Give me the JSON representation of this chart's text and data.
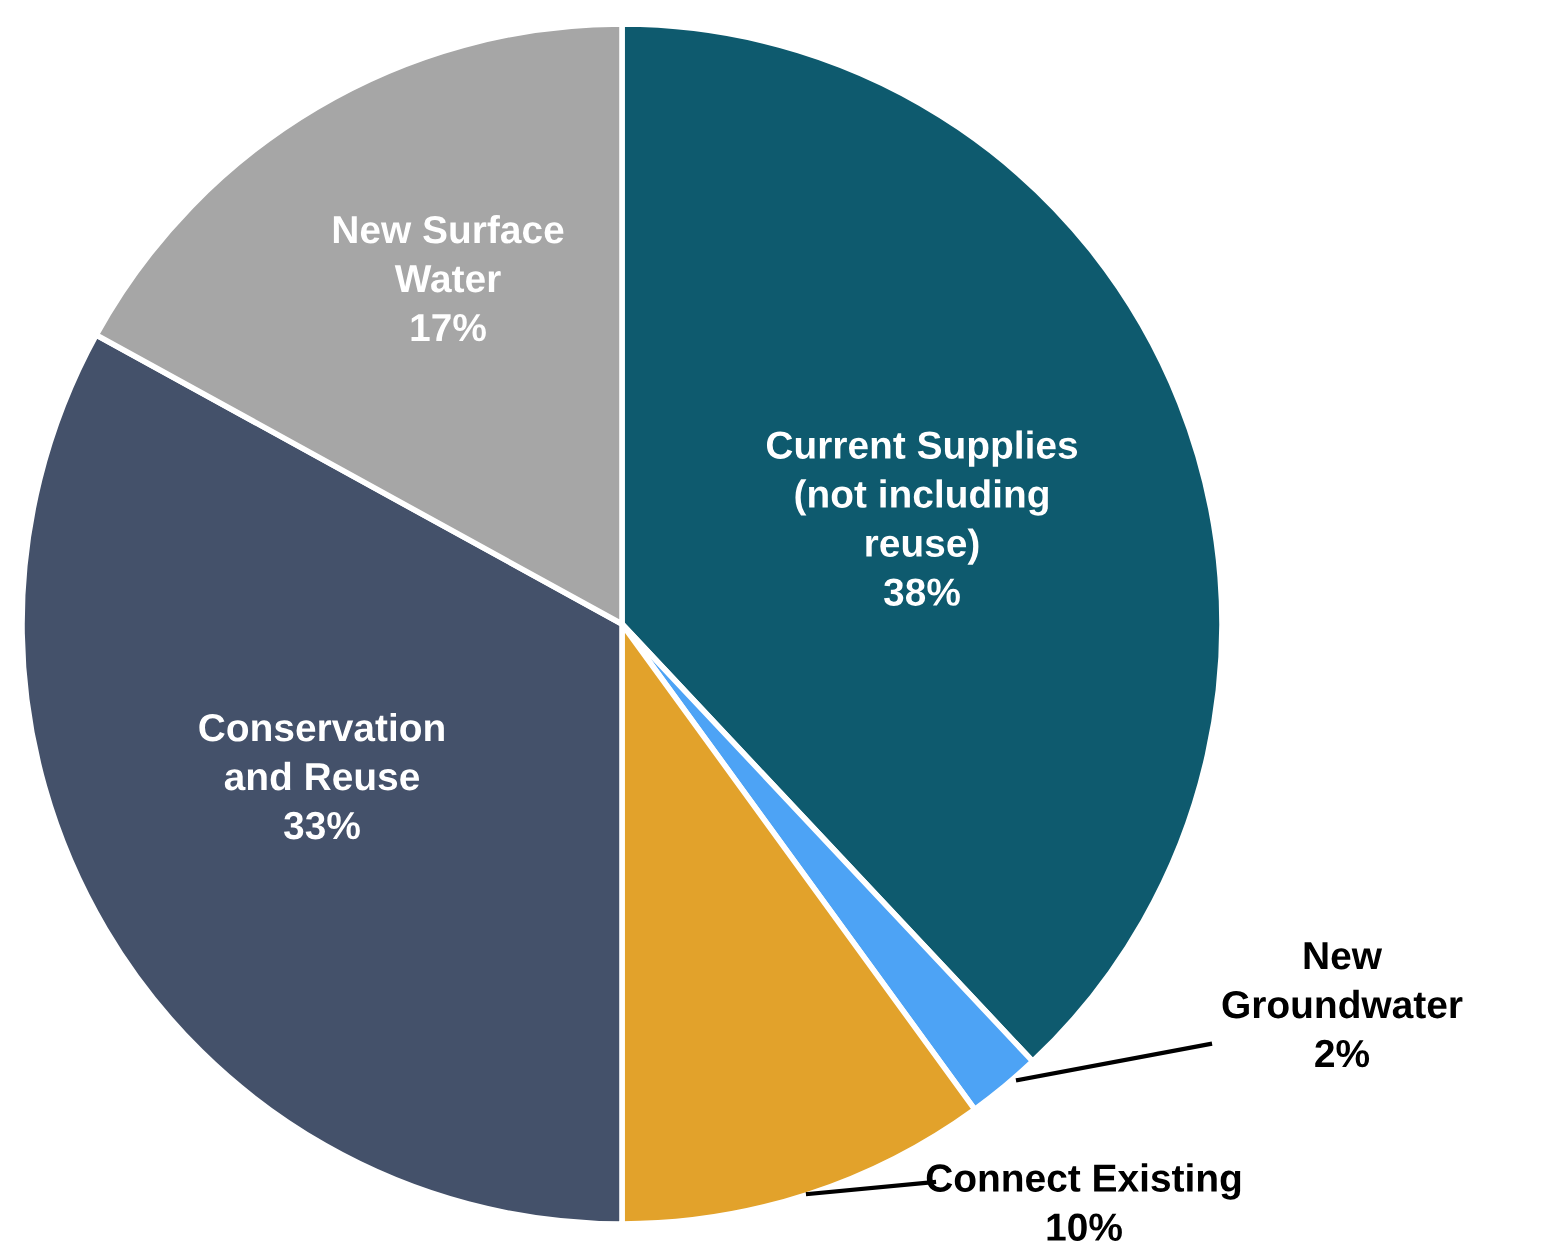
{
  "chart_data": {
    "type": "pie",
    "categories": [
      "Current Supplies\n(not including\nreuse)",
      "New\nGroundwater",
      "Connect Existing",
      "Conservation\nand Reuse",
      "New Surface\nWater"
    ],
    "values": [
      38,
      2,
      10,
      33,
      17
    ],
    "colors": [
      "#0e5a6e",
      "#4da3f5",
      "#e2a22b",
      "#44516a",
      "#a6a6a6"
    ],
    "value_labels": [
      "38%",
      "2%",
      "10%",
      "33%",
      "17%"
    ]
  }
}
